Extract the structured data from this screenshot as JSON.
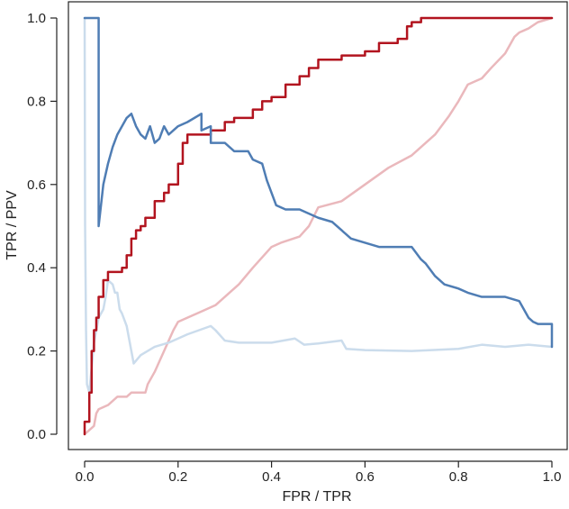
{
  "chart_data": {
    "type": "line",
    "xlabel": "FPR / TPR",
    "ylabel": "TPR / PPV",
    "xlim": [
      0,
      1
    ],
    "ylim": [
      0,
      1
    ],
    "xticks": [
      "0.0",
      "0.2",
      "0.4",
      "0.6",
      "0.8",
      "1.0"
    ],
    "yticks": [
      "0.0",
      "0.2",
      "0.4",
      "0.6",
      "0.8",
      "1.0"
    ],
    "grid": false,
    "series": [
      {
        "color": "#eab8bc",
        "width": 2.5,
        "step": false,
        "points": [
          [
            0.0,
            0.0
          ],
          [
            0.01,
            0.01
          ],
          [
            0.02,
            0.02
          ],
          [
            0.025,
            0.05
          ],
          [
            0.03,
            0.06
          ],
          [
            0.05,
            0.07
          ],
          [
            0.06,
            0.08
          ],
          [
            0.07,
            0.09
          ],
          [
            0.08,
            0.09
          ],
          [
            0.09,
            0.09
          ],
          [
            0.1,
            0.1
          ],
          [
            0.13,
            0.1
          ],
          [
            0.135,
            0.12
          ],
          [
            0.15,
            0.15
          ],
          [
            0.17,
            0.2
          ],
          [
            0.19,
            0.25
          ],
          [
            0.2,
            0.27
          ],
          [
            0.22,
            0.28
          ],
          [
            0.25,
            0.295
          ],
          [
            0.28,
            0.31
          ],
          [
            0.3,
            0.33
          ],
          [
            0.33,
            0.36
          ],
          [
            0.36,
            0.4
          ],
          [
            0.4,
            0.45
          ],
          [
            0.42,
            0.46
          ],
          [
            0.46,
            0.475
          ],
          [
            0.48,
            0.5
          ],
          [
            0.5,
            0.545
          ],
          [
            0.55,
            0.56
          ],
          [
            0.6,
            0.6
          ],
          [
            0.65,
            0.64
          ],
          [
            0.7,
            0.67
          ],
          [
            0.75,
            0.72
          ],
          [
            0.78,
            0.765
          ],
          [
            0.8,
            0.8
          ],
          [
            0.82,
            0.84
          ],
          [
            0.85,
            0.855
          ],
          [
            0.87,
            0.88
          ],
          [
            0.9,
            0.915
          ],
          [
            0.91,
            0.935
          ],
          [
            0.92,
            0.955
          ],
          [
            0.93,
            0.965
          ],
          [
            0.95,
            0.975
          ],
          [
            0.97,
            0.99
          ],
          [
            1.0,
            1.0
          ]
        ]
      },
      {
        "color": "#cbdcec",
        "width": 2.5,
        "step": false,
        "points": [
          [
            0.0,
            1.0
          ],
          [
            0.001,
            0.5
          ],
          [
            0.003,
            0.25
          ],
          [
            0.005,
            0.12
          ],
          [
            0.01,
            0.1
          ],
          [
            0.02,
            0.22
          ],
          [
            0.03,
            0.28
          ],
          [
            0.04,
            0.3
          ],
          [
            0.045,
            0.33
          ],
          [
            0.05,
            0.37
          ],
          [
            0.06,
            0.36
          ],
          [
            0.065,
            0.34
          ],
          [
            0.07,
            0.34
          ],
          [
            0.075,
            0.3
          ],
          [
            0.08,
            0.29
          ],
          [
            0.09,
            0.26
          ],
          [
            0.1,
            0.2
          ],
          [
            0.105,
            0.17
          ],
          [
            0.12,
            0.19
          ],
          [
            0.15,
            0.21
          ],
          [
            0.18,
            0.22
          ],
          [
            0.22,
            0.24
          ],
          [
            0.27,
            0.26
          ],
          [
            0.28,
            0.25
          ],
          [
            0.3,
            0.225
          ],
          [
            0.33,
            0.22
          ],
          [
            0.4,
            0.22
          ],
          [
            0.45,
            0.23
          ],
          [
            0.47,
            0.215
          ],
          [
            0.5,
            0.218
          ],
          [
            0.55,
            0.225
          ],
          [
            0.56,
            0.205
          ],
          [
            0.6,
            0.202
          ],
          [
            0.7,
            0.2
          ],
          [
            0.8,
            0.205
          ],
          [
            0.85,
            0.215
          ],
          [
            0.9,
            0.21
          ],
          [
            0.95,
            0.215
          ],
          [
            1.0,
            0.21
          ]
        ]
      },
      {
        "color": "#b2141f",
        "width": 2.5,
        "step": true,
        "points": [
          [
            0.0,
            0.0
          ],
          [
            0.0,
            0.03
          ],
          [
            0.01,
            0.1
          ],
          [
            0.015,
            0.2
          ],
          [
            0.02,
            0.25
          ],
          [
            0.025,
            0.28
          ],
          [
            0.03,
            0.33
          ],
          [
            0.04,
            0.37
          ],
          [
            0.05,
            0.39
          ],
          [
            0.08,
            0.4
          ],
          [
            0.09,
            0.43
          ],
          [
            0.1,
            0.47
          ],
          [
            0.11,
            0.49
          ],
          [
            0.12,
            0.5
          ],
          [
            0.13,
            0.52
          ],
          [
            0.15,
            0.56
          ],
          [
            0.17,
            0.58
          ],
          [
            0.18,
            0.6
          ],
          [
            0.2,
            0.65
          ],
          [
            0.21,
            0.7
          ],
          [
            0.22,
            0.72
          ],
          [
            0.27,
            0.73
          ],
          [
            0.3,
            0.75
          ],
          [
            0.32,
            0.76
          ],
          [
            0.36,
            0.78
          ],
          [
            0.38,
            0.8
          ],
          [
            0.4,
            0.81
          ],
          [
            0.43,
            0.84
          ],
          [
            0.46,
            0.86
          ],
          [
            0.48,
            0.88
          ],
          [
            0.5,
            0.9
          ],
          [
            0.55,
            0.91
          ],
          [
            0.6,
            0.92
          ],
          [
            0.63,
            0.94
          ],
          [
            0.67,
            0.95
          ],
          [
            0.69,
            0.98
          ],
          [
            0.7,
            0.99
          ],
          [
            0.72,
            1.0
          ],
          [
            1.0,
            1.0
          ]
        ]
      },
      {
        "color": "#4f7db4",
        "width": 2.5,
        "step": false,
        "points": [
          [
            0.0,
            1.0
          ],
          [
            0.03,
            1.0
          ],
          [
            0.03,
            0.5
          ],
          [
            0.04,
            0.6
          ],
          [
            0.05,
            0.65
          ],
          [
            0.06,
            0.69
          ],
          [
            0.07,
            0.72
          ],
          [
            0.08,
            0.74
          ],
          [
            0.09,
            0.76
          ],
          [
            0.1,
            0.77
          ],
          [
            0.11,
            0.74
          ],
          [
            0.12,
            0.72
          ],
          [
            0.13,
            0.71
          ],
          [
            0.14,
            0.74
          ],
          [
            0.15,
            0.7
          ],
          [
            0.16,
            0.71
          ],
          [
            0.17,
            0.74
          ],
          [
            0.18,
            0.72
          ],
          [
            0.2,
            0.74
          ],
          [
            0.22,
            0.75
          ],
          [
            0.25,
            0.77
          ],
          [
            0.25,
            0.73
          ],
          [
            0.27,
            0.74
          ],
          [
            0.27,
            0.7
          ],
          [
            0.3,
            0.7
          ],
          [
            0.31,
            0.69
          ],
          [
            0.32,
            0.68
          ],
          [
            0.35,
            0.68
          ],
          [
            0.36,
            0.66
          ],
          [
            0.38,
            0.65
          ],
          [
            0.39,
            0.61
          ],
          [
            0.4,
            0.58
          ],
          [
            0.41,
            0.55
          ],
          [
            0.43,
            0.54
          ],
          [
            0.46,
            0.54
          ],
          [
            0.48,
            0.53
          ],
          [
            0.5,
            0.52
          ],
          [
            0.53,
            0.51
          ],
          [
            0.55,
            0.49
          ],
          [
            0.57,
            0.47
          ],
          [
            0.6,
            0.46
          ],
          [
            0.63,
            0.45
          ],
          [
            0.67,
            0.45
          ],
          [
            0.7,
            0.45
          ],
          [
            0.72,
            0.42
          ],
          [
            0.73,
            0.41
          ],
          [
            0.75,
            0.38
          ],
          [
            0.77,
            0.36
          ],
          [
            0.8,
            0.35
          ],
          [
            0.82,
            0.34
          ],
          [
            0.85,
            0.33
          ],
          [
            0.9,
            0.33
          ],
          [
            0.93,
            0.32
          ],
          [
            0.95,
            0.28
          ],
          [
            0.96,
            0.27
          ],
          [
            0.97,
            0.265
          ],
          [
            0.98,
            0.265
          ],
          [
            1.0,
            0.265
          ],
          [
            1.0,
            0.21
          ]
        ]
      }
    ]
  }
}
